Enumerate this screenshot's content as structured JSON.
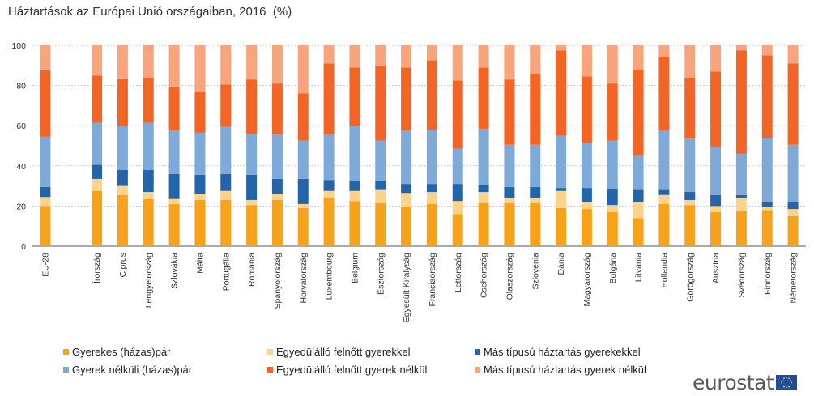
{
  "title": "Háztartások az Európai Unió országaiban, 2016  (%)",
  "logo_text": "eurostat",
  "chart_data": {
    "type": "bar",
    "stacked": true,
    "title": "Háztartások az Európai Unió országaiban, 2016  (%)",
    "ylim": [
      0,
      100
    ],
    "yticks": [
      0,
      20,
      40,
      60,
      80,
      100
    ],
    "grid": true,
    "legend_position": "bottom",
    "categories": [
      "EU-28",
      "",
      "Írország",
      "Ciprus",
      "Lengyelország",
      "Szlovákia",
      "Málta",
      "Portugália",
      "Románia",
      "Spanyolország",
      "Horvátország",
      "Luxembourg",
      "Belgium",
      "Észtország",
      "Egyesült Királyság",
      "Franciaország",
      "Lettország",
      "Csehország",
      "Olaszország",
      "Szlovénia",
      "Dánia",
      "Magyarország",
      "Bulgária",
      "Litvánia",
      "Hollandia",
      "Görögország",
      "Ausztria",
      "Svédország",
      "Finnország",
      "Németország"
    ],
    "series": [
      {
        "name": "Gyerekes (házas)pár",
        "color": "#f7a21b",
        "values": [
          20,
          null,
          27.5,
          25.5,
          23.5,
          21,
          23,
          23,
          20.5,
          23,
          19,
          24,
          22.5,
          21.5,
          19.5,
          21,
          16,
          21.5,
          21.5,
          21.5,
          19,
          18.5,
          17,
          14,
          21,
          20.5,
          17,
          17.5,
          18,
          15
        ]
      },
      {
        "name": "Egyedülálló felnőtt gyerekkel",
        "color": "#fdd28a",
        "values": [
          4.5,
          null,
          6,
          4.5,
          3.5,
          2.5,
          3,
          4.5,
          2.5,
          3,
          2,
          3.5,
          5,
          6.5,
          7,
          6,
          6.5,
          5.5,
          2.5,
          2.5,
          8.5,
          3.5,
          3.5,
          8,
          4.5,
          2.5,
          3,
          6.5,
          1.5,
          3.5
        ]
      },
      {
        "name": "Más típusú háztartás gyerekekkel",
        "color": "#2465a9",
        "values": [
          5,
          null,
          7,
          8,
          11,
          12.5,
          9.5,
          8.5,
          12.5,
          7.5,
          12.5,
          5.5,
          5,
          4.5,
          4.5,
          4,
          8.5,
          3.5,
          5.5,
          5.5,
          1.5,
          7,
          8,
          6,
          2.5,
          4,
          5.5,
          1.5,
          2.5,
          3.5
        ]
      },
      {
        "name": "Gyerek nélküli (házas)pár",
        "color": "#7eaad9",
        "values": [
          25,
          null,
          21,
          22,
          23.5,
          21.5,
          21,
          23.5,
          20.5,
          22,
          19,
          22.5,
          27.5,
          20,
          26.5,
          27,
          17.5,
          28,
          21,
          21,
          26,
          22.5,
          24,
          17,
          29.5,
          26.5,
          24,
          20.5,
          32,
          28.5
        ]
      },
      {
        "name": "Egyedülálló felnőtt gyerek nélkül",
        "color": "#f26524",
        "values": [
          33,
          null,
          23.5,
          23.5,
          22.5,
          22,
          20.5,
          21,
          27,
          25.5,
          23.5,
          35.5,
          29,
          37.5,
          31.5,
          34.5,
          34,
          30.5,
          32.5,
          35.5,
          42.5,
          33,
          28.5,
          43,
          37,
          30.5,
          37.5,
          51.5,
          41,
          40.5
        ]
      },
      {
        "name": "Más típusú háztartás gyerek nélkül",
        "color": "#f8a47c",
        "values": [
          12.5,
          null,
          15,
          16.5,
          16,
          20.5,
          23,
          19.5,
          17,
          19,
          24,
          9,
          11,
          10,
          11,
          7.5,
          17.5,
          11,
          17,
          14,
          2.5,
          15.5,
          19,
          12,
          5.5,
          16,
          13,
          2.5,
          5,
          9
        ]
      }
    ]
  }
}
